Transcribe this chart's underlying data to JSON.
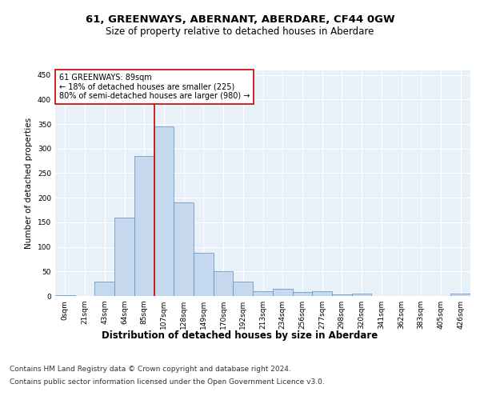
{
  "title": "61, GREENWAYS, ABERNANT, ABERDARE, CF44 0GW",
  "subtitle": "Size of property relative to detached houses in Aberdare",
  "xlabel": "Distribution of detached houses by size in Aberdare",
  "ylabel": "Number of detached properties",
  "bar_labels": [
    "0sqm",
    "21sqm",
    "43sqm",
    "64sqm",
    "85sqm",
    "107sqm",
    "128sqm",
    "149sqm",
    "170sqm",
    "192sqm",
    "213sqm",
    "234sqm",
    "256sqm",
    "277sqm",
    "298sqm",
    "320sqm",
    "341sqm",
    "362sqm",
    "383sqm",
    "405sqm",
    "426sqm"
  ],
  "bar_values": [
    2,
    0,
    30,
    160,
    285,
    345,
    190,
    88,
    50,
    30,
    10,
    15,
    8,
    10,
    4,
    5,
    0,
    0,
    0,
    0,
    5
  ],
  "bar_color": "#c5d8ee",
  "bar_edge_color": "#5a8fc0",
  "background_color": "#e8f0f8",
  "grid_color": "#ffffff",
  "red_line_x": 4.5,
  "annotation_line1": "61 GREENWAYS: 89sqm",
  "annotation_line2": "← 18% of detached houses are smaller (225)",
  "annotation_line3": "80% of semi-detached houses are larger (980) →",
  "annotation_box_color": "#ffffff",
  "annotation_box_edge": "#cc0000",
  "ylim": [
    0,
    460
  ],
  "yticks": [
    0,
    50,
    100,
    150,
    200,
    250,
    300,
    350,
    400,
    450
  ],
  "footer_line1": "Contains HM Land Registry data © Crown copyright and database right 2024.",
  "footer_line2": "Contains public sector information licensed under the Open Government Licence v3.0.",
  "title_fontsize": 9.5,
  "subtitle_fontsize": 8.5,
  "xlabel_fontsize": 8.5,
  "ylabel_fontsize": 7.5,
  "tick_fontsize": 6.5,
  "annotation_fontsize": 7.0,
  "footer_fontsize": 6.5
}
